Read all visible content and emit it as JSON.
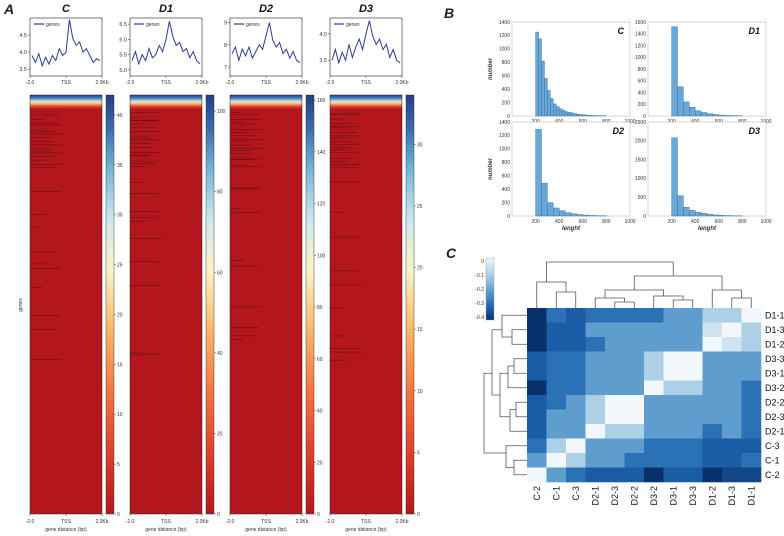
{
  "figure": {
    "panel_letters": [
      "A",
      "B",
      "C"
    ]
  },
  "chart_data": [
    {
      "id": "A",
      "type": "line+heatmap",
      "x_ticks": [
        "-2.0",
        "TSS",
        "2.0Kb"
      ],
      "xlabel": "gene distance (bp)",
      "ylabel": "genes",
      "legend_label": "genes",
      "line_color": "#2b3a9a",
      "subplots": [
        {
          "title": "C",
          "profile_ylim": [
            3.3,
            5.0
          ],
          "profile_yticks": [
            "3.5",
            "4.0",
            "4.5"
          ],
          "profile": [
            3.9,
            3.7,
            3.95,
            3.6,
            3.85,
            3.65,
            3.9,
            3.75,
            4.1,
            3.9,
            4.0,
            4.95,
            4.4,
            4.2,
            4.3,
            4.0,
            4.1,
            3.9,
            3.7,
            3.8,
            3.75
          ],
          "cbar_max": 42,
          "cbar_ticks": [
            "0",
            "5",
            "10",
            "15",
            "20",
            "25",
            "30",
            "35",
            "40"
          ]
        },
        {
          "title": "D1",
          "profile_ylim": [
            4.8,
            6.7
          ],
          "profile_yticks": [
            "5.0",
            "5.5",
            "6.0",
            "6.5"
          ],
          "profile": [
            5.3,
            5.6,
            5.2,
            5.5,
            5.3,
            5.7,
            5.4,
            5.5,
            5.8,
            5.6,
            6.0,
            6.6,
            6.1,
            5.8,
            5.9,
            5.6,
            5.7,
            5.4,
            5.6,
            5.3,
            5.2
          ],
          "cbar_max": 104,
          "cbar_ticks": [
            "0",
            "20",
            "40",
            "60",
            "80",
            "100"
          ]
        },
        {
          "title": "D2",
          "profile_ylim": [
            6.6,
            9.2
          ],
          "profile_yticks": [
            "7",
            "8",
            "9"
          ],
          "profile": [
            7.6,
            7.9,
            7.3,
            7.8,
            7.5,
            7.9,
            7.4,
            7.7,
            8.0,
            7.8,
            8.4,
            9.0,
            8.2,
            7.9,
            8.1,
            7.6,
            7.8,
            7.4,
            7.7,
            7.3,
            7.2
          ],
          "cbar_max": 162,
          "cbar_ticks": [
            "0",
            "20",
            "40",
            "60",
            "80",
            "100",
            "120",
            "140",
            "160"
          ]
        },
        {
          "title": "D3",
          "profile_ylim": [
            3.2,
            4.3
          ],
          "profile_yticks": [
            "3.5",
            "4.0"
          ],
          "profile": [
            3.5,
            3.7,
            3.45,
            3.65,
            3.5,
            3.8,
            3.55,
            3.75,
            3.9,
            3.7,
            4.0,
            4.25,
            3.95,
            3.8,
            3.9,
            3.7,
            3.8,
            3.55,
            3.7,
            3.5,
            3.45
          ],
          "cbar_max": 34,
          "cbar_ticks": [
            "0",
            "5",
            "10",
            "15",
            "20",
            "25",
            "30"
          ]
        }
      ]
    },
    {
      "id": "B",
      "type": "bar",
      "xlabel": "lenght",
      "ylabel": "number",
      "x_ticks": [
        "200",
        "400",
        "600",
        "800",
        "1000"
      ],
      "xlim": [
        0,
        1000
      ],
      "bin_starts": [
        200,
        225,
        250,
        275,
        300,
        325,
        350,
        375,
        400,
        425,
        450,
        475,
        500,
        525,
        550,
        575,
        600,
        625,
        650,
        675,
        700,
        725,
        750,
        775
      ],
      "bin_width": 25,
      "subplots": [
        {
          "title": "C",
          "ylim": [
            0,
            1400
          ],
          "y_ticks": [
            "0",
            "200",
            "400",
            "600",
            "800",
            "1000",
            "1200",
            "1400"
          ],
          "values": [
            1250,
            1150,
            820,
            560,
            380,
            260,
            180,
            140,
            110,
            85,
            65,
            55,
            45,
            35,
            28,
            22,
            18,
            14,
            10,
            8,
            6,
            5,
            4,
            3
          ]
        },
        {
          "title": "D1",
          "ylim": [
            0,
            1600
          ],
          "y_ticks": [
            "0",
            "200",
            "400",
            "600",
            "800",
            "1000",
            "1200",
            "1400",
            "1600"
          ],
          "values": [
            0,
            1520,
            0,
            500,
            0,
            240,
            0,
            150,
            0,
            90,
            0,
            60,
            0,
            40,
            0,
            25,
            0,
            15,
            0,
            10,
            0,
            6,
            0,
            4
          ]
        },
        {
          "title": "D2",
          "ylim": [
            0,
            1400
          ],
          "y_ticks": [
            "0",
            "200",
            "400",
            "600",
            "800",
            "1000",
            "1200",
            "1400"
          ],
          "values": [
            0,
            1290,
            0,
            490,
            0,
            200,
            0,
            120,
            0,
            80,
            0,
            50,
            0,
            35,
            0,
            22,
            0,
            14,
            0,
            8,
            0,
            5,
            0,
            3
          ]
        },
        {
          "title": "D3",
          "ylim": [
            0,
            2500
          ],
          "y_ticks": [
            "0",
            "500",
            "1000",
            "1500",
            "2000",
            "2500"
          ],
          "values": [
            0,
            2080,
            0,
            540,
            0,
            230,
            0,
            150,
            0,
            100,
            0,
            70,
            0,
            45,
            0,
            28,
            0,
            18,
            0,
            12,
            0,
            8,
            0,
            5
          ]
        }
      ]
    },
    {
      "id": "C",
      "type": "heatmap",
      "colorbar_ticks": [
        "0",
        "-0.1",
        "-0.2",
        "-0.3",
        "-0.4"
      ],
      "row_labels": [
        "D1-1",
        "D1-3",
        "D1-2",
        "D3-3",
        "D3-1",
        "D3-2",
        "D2-2",
        "D2-3",
        "D2-1",
        "C-3",
        "C-1",
        "C-2"
      ],
      "col_labels": [
        "C-2",
        "C-1",
        "C-3",
        "D2-1",
        "D2-3",
        "D2-2",
        "D3-2",
        "D3-1",
        "D3-3",
        "D1-2",
        "D1-3",
        "D1-1"
      ],
      "matrix": [
        [
          -0.45,
          -0.3,
          -0.35,
          -0.3,
          -0.3,
          -0.3,
          -0.3,
          -0.2,
          -0.2,
          -0.1,
          -0.1,
          0.0
        ],
        [
          -0.45,
          -0.35,
          -0.35,
          -0.2,
          -0.2,
          -0.2,
          -0.2,
          -0.2,
          -0.2,
          -0.05,
          0.0,
          -0.1
        ],
        [
          -0.45,
          -0.35,
          -0.35,
          -0.3,
          -0.2,
          -0.2,
          -0.2,
          -0.2,
          -0.2,
          0.0,
          -0.05,
          -0.1
        ],
        [
          -0.35,
          -0.3,
          -0.3,
          -0.2,
          -0.2,
          -0.2,
          -0.1,
          0.0,
          0.0,
          -0.2,
          -0.2,
          -0.2
        ],
        [
          -0.35,
          -0.3,
          -0.3,
          -0.2,
          -0.2,
          -0.2,
          -0.1,
          0.0,
          0.0,
          -0.2,
          -0.2,
          -0.2
        ],
        [
          -0.45,
          -0.3,
          -0.3,
          -0.2,
          -0.2,
          -0.2,
          0.0,
          -0.1,
          -0.1,
          -0.2,
          -0.2,
          -0.3
        ],
        [
          -0.35,
          -0.3,
          -0.2,
          -0.1,
          0.0,
          0.0,
          -0.2,
          -0.2,
          -0.2,
          -0.2,
          -0.2,
          -0.3
        ],
        [
          -0.35,
          -0.2,
          -0.2,
          -0.1,
          0.0,
          0.0,
          -0.2,
          -0.2,
          -0.2,
          -0.2,
          -0.2,
          -0.3
        ],
        [
          -0.35,
          -0.2,
          -0.2,
          0.0,
          -0.1,
          -0.1,
          -0.2,
          -0.2,
          -0.2,
          -0.3,
          -0.2,
          -0.3
        ],
        [
          -0.3,
          -0.1,
          0.0,
          -0.2,
          -0.2,
          -0.2,
          -0.3,
          -0.3,
          -0.3,
          -0.35,
          -0.35,
          -0.35
        ],
        [
          -0.2,
          0.0,
          -0.1,
          -0.2,
          -0.2,
          -0.3,
          -0.3,
          -0.3,
          -0.3,
          -0.35,
          -0.35,
          -0.3
        ],
        [
          0.0,
          -0.2,
          -0.3,
          -0.35,
          -0.35,
          -0.35,
          -0.45,
          -0.35,
          -0.35,
          -0.45,
          -0.4,
          -0.4
        ]
      ]
    }
  ]
}
